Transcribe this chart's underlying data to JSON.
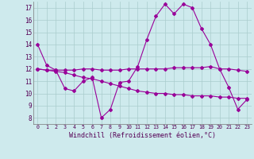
{
  "xlabel": "Windchill (Refroidissement éolien,°C)",
  "bg_color": "#ceeaed",
  "grid_color": "#aacccc",
  "line_color": "#990099",
  "x_values": [
    0,
    1,
    2,
    3,
    4,
    5,
    6,
    7,
    8,
    9,
    10,
    11,
    12,
    13,
    14,
    15,
    16,
    17,
    18,
    19,
    20,
    21,
    22,
    23
  ],
  "line1": [
    14.0,
    12.3,
    11.9,
    10.4,
    10.2,
    11.0,
    11.3,
    8.0,
    8.7,
    10.9,
    11.0,
    12.2,
    14.4,
    16.3,
    17.3,
    16.5,
    17.3,
    17.0,
    15.3,
    14.0,
    12.0,
    10.5,
    8.7,
    9.5
  ],
  "line2": [
    12.0,
    11.9,
    11.9,
    11.9,
    11.9,
    12.0,
    12.0,
    11.9,
    11.9,
    11.9,
    12.0,
    12.0,
    12.0,
    12.0,
    12.0,
    12.1,
    12.1,
    12.1,
    12.1,
    12.2,
    12.0,
    12.0,
    11.9,
    11.8
  ],
  "line3": [
    12.0,
    11.9,
    11.8,
    11.7,
    11.5,
    11.3,
    11.2,
    11.0,
    10.8,
    10.6,
    10.4,
    10.2,
    10.1,
    10.0,
    10.0,
    9.9,
    9.9,
    9.8,
    9.8,
    9.8,
    9.7,
    9.7,
    9.6,
    9.6
  ],
  "ylim_min": 7.5,
  "ylim_max": 17.5,
  "yticks": [
    8,
    9,
    10,
    11,
    12,
    13,
    14,
    15,
    16,
    17
  ],
  "xticks": [
    0,
    1,
    2,
    3,
    4,
    5,
    6,
    7,
    8,
    9,
    10,
    11,
    12,
    13,
    14,
    15,
    16,
    17,
    18,
    19,
    20,
    21,
    22,
    23
  ]
}
